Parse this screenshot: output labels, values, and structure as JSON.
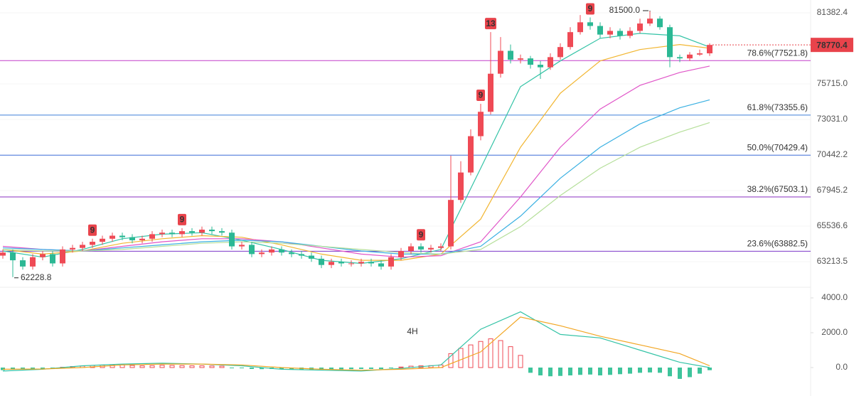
{
  "chart_data": [
    {
      "type": "candlestick",
      "log_scale": true,
      "grid": true,
      "ylim": [
        61770,
        82445
      ],
      "yticks": [
        {
          "value": 81382.4,
          "label": "81382.4"
        },
        {
          "value": 75715,
          "label": "75715.0"
        },
        {
          "value": 73031,
          "label": "73031.0"
        },
        {
          "value": 70442.2,
          "label": "70442.2"
        },
        {
          "value": 67945.2,
          "label": "67945.2"
        },
        {
          "value": 65536.6,
          "label": "65536.6"
        },
        {
          "value": 63213.5,
          "label": "63213.5"
        }
      ],
      "up_color": "#ef4a55",
      "down_color": "#2bb894",
      "open": [
        63600,
        63800,
        63300,
        62900,
        63500,
        63700,
        63100,
        64000,
        64100,
        64300,
        64500,
        64700,
        64900,
        64800,
        64600,
        64700,
        65000,
        65100,
        65000,
        65200,
        65100,
        65300,
        65200,
        65100,
        64200,
        64300,
        63700,
        63800,
        64000,
        63800,
        63700,
        63600,
        63400,
        63000,
        63200,
        63100,
        63100,
        63200,
        63100,
        62900,
        63500,
        63900,
        64200,
        64000,
        64100,
        64200,
        67300,
        69200,
        71800,
        73600,
        76500,
        78300,
        77600,
        77700,
        77200,
        77000,
        77800,
        78600,
        79800,
        80600,
        80300,
        79600,
        79900,
        79500,
        79900,
        80500,
        80900,
        80200,
        77800,
        77700,
        78000,
        78100
      ],
      "high": [
        64000,
        64000,
        63500,
        63700,
        63900,
        63900,
        64200,
        64300,
        64500,
        64700,
        64900,
        65100,
        65100,
        65000,
        64900,
        65200,
        65300,
        65300,
        65400,
        65400,
        65500,
        65500,
        65400,
        65300,
        64500,
        64500,
        64000,
        64200,
        64200,
        64000,
        63900,
        63800,
        63600,
        63400,
        63400,
        63300,
        63400,
        63400,
        63300,
        63700,
        64100,
        64400,
        64400,
        64300,
        64400,
        70400,
        70000,
        72300,
        74200,
        79800,
        79400,
        78800,
        78000,
        77900,
        77500,
        78100,
        78900,
        80200,
        81200,
        81000,
        80600,
        80200,
        80100,
        80200,
        80900,
        81500,
        81100,
        80400,
        78000,
        78200,
        78400,
        78900
      ],
      "low": [
        63400,
        62228.8,
        62700,
        62700,
        63300,
        62900,
        62900,
        63800,
        63900,
        64100,
        64300,
        64500,
        64600,
        64400,
        64400,
        64500,
        64800,
        64800,
        64800,
        64900,
        64900,
        65000,
        64900,
        64000,
        64000,
        63500,
        63500,
        63600,
        63600,
        63500,
        63400,
        63200,
        62800,
        62800,
        62900,
        62900,
        62900,
        62900,
        62700,
        62700,
        63300,
        63700,
        63800,
        63800,
        63900,
        64000,
        67100,
        69000,
        71500,
        73400,
        76200,
        77300,
        77300,
        76900,
        76100,
        76800,
        77600,
        78400,
        79600,
        80000,
        79300,
        79300,
        79200,
        79300,
        79700,
        80300,
        80000,
        77000,
        77400,
        77500,
        77900,
        77900
      ],
      "close": [
        63800,
        63300,
        62900,
        63500,
        63700,
        63100,
        64000,
        64100,
        64300,
        64500,
        64700,
        64900,
        64800,
        64600,
        64700,
        65000,
        65100,
        65000,
        65200,
        65100,
        65300,
        65200,
        65100,
        64200,
        64300,
        63700,
        63800,
        64000,
        63800,
        63700,
        63600,
        63400,
        63000,
        63200,
        63100,
        63100,
        63200,
        63100,
        62900,
        63500,
        63900,
        64200,
        64000,
        64100,
        64200,
        67300,
        69200,
        71800,
        73600,
        76500,
        78300,
        77600,
        77700,
        77200,
        77000,
        77800,
        78600,
        79800,
        80600,
        80300,
        79600,
        79900,
        79500,
        79900,
        80500,
        80900,
        80200,
        77800,
        77700,
        78000,
        78100,
        78770.4
      ],
      "series": [
        {
          "color": "#33c3a6",
          "x": [
            0,
            4,
            8,
            12,
            16,
            20,
            24,
            28,
            32,
            36,
            40,
            44,
            48,
            52,
            56,
            60,
            64,
            68,
            71
          ],
          "values": [
            63900,
            63500,
            64000,
            64700,
            65000,
            65100,
            64600,
            64000,
            63300,
            63100,
            63400,
            64000,
            69500,
            75500,
            77500,
            79300,
            79700,
            79500,
            78600
          ]
        },
        {
          "color": "#f2b632",
          "x": [
            0,
            4,
            8,
            12,
            16,
            20,
            24,
            28,
            32,
            36,
            40,
            44,
            48,
            52,
            56,
            60,
            64,
            68,
            71
          ],
          "values": [
            64000,
            63700,
            63900,
            64400,
            64700,
            64900,
            64800,
            64300,
            63700,
            63300,
            63300,
            63700,
            66000,
            71000,
            75000,
            77500,
            78400,
            78800,
            78500
          ]
        },
        {
          "color": "#e055c8",
          "x": [
            0,
            4,
            8,
            12,
            16,
            20,
            24,
            28,
            32,
            36,
            40,
            44,
            48,
            52,
            56,
            60,
            64,
            68,
            71
          ],
          "values": [
            64200,
            64000,
            63900,
            64200,
            64500,
            64700,
            64700,
            64500,
            64100,
            63700,
            63500,
            63600,
            64500,
            67500,
            71000,
            73800,
            75600,
            76600,
            77100
          ]
        },
        {
          "color": "#3ab0e2",
          "x": [
            0,
            4,
            8,
            12,
            16,
            20,
            24,
            28,
            32,
            36,
            40,
            44,
            48,
            52,
            56,
            60,
            64,
            68,
            71
          ],
          "values": [
            64100,
            64000,
            63900,
            64100,
            64300,
            64500,
            64600,
            64500,
            64200,
            63900,
            63700,
            63700,
            64200,
            66200,
            68800,
            71000,
            72700,
            73900,
            74500
          ]
        },
        {
          "color": "#b5df9a",
          "x": [
            0,
            4,
            8,
            12,
            16,
            20,
            24,
            28,
            32,
            36,
            40,
            44,
            48,
            52,
            56,
            60,
            64,
            68,
            71
          ],
          "values": [
            64000,
            63900,
            63900,
            64000,
            64200,
            64400,
            64500,
            64400,
            64200,
            64000,
            63800,
            63700,
            64000,
            65500,
            67600,
            69500,
            71000,
            72100,
            72800
          ]
        }
      ],
      "fib_levels": [
        {
          "value": 77521.8,
          "label": "78.6%(77521.8)",
          "color": "#c43fc9"
        },
        {
          "value": 73355.6,
          "label": "61.8%(73355.6)",
          "color": "#3f7fd9"
        },
        {
          "value": 70429.4,
          "label": "50.0%(70429.4)",
          "color": "#3f6fd9"
        },
        {
          "value": 67503.1,
          "label": "38.2%(67503.1)",
          "color": "#8a2fc0"
        },
        {
          "value": 63882.5,
          "label": "23.6%(63882.5)",
          "color": "#7b35c8"
        }
      ],
      "high_label": "81500.0",
      "low_label": "62228.8",
      "markers": [
        {
          "x": 9,
          "text": "9"
        },
        {
          "x": 18,
          "text": "9"
        },
        {
          "x": 42,
          "text": "9"
        },
        {
          "x": 48,
          "text": "9"
        },
        {
          "x": 49,
          "text": "13"
        },
        {
          "x": 59,
          "text": "9"
        }
      ]
    },
    {
      "type": "bar",
      "label": "4H",
      "label_color": "#e8434b",
      "ylim": [
        -1633,
        4449
      ],
      "yticks": [
        {
          "value": 4000,
          "label": "4000.0"
        },
        {
          "value": 2000,
          "label": "2000.0"
        },
        {
          "value": 0,
          "label": "0.0"
        }
      ],
      "up_color": "#ef4a55",
      "down_color": "#3ec49b",
      "values": [
        -150,
        -120,
        -80,
        -100,
        -60,
        -30,
        20,
        60,
        90,
        120,
        140,
        160,
        150,
        120,
        100,
        110,
        130,
        120,
        110,
        100,
        100,
        90,
        80,
        -20,
        -40,
        -80,
        -90,
        -80,
        -90,
        -100,
        -110,
        -120,
        -130,
        -110,
        -100,
        -90,
        -80,
        -80,
        -90,
        -30,
        30,
        80,
        100,
        110,
        150,
        800,
        1100,
        1300,
        1500,
        1650,
        1550,
        1200,
        700,
        -300,
        -450,
        -500,
        -480,
        -450,
        -420,
        -400,
        -450,
        -420,
        -380,
        -350,
        -300,
        -280,
        -300,
        -500,
        -650,
        -550,
        -350,
        -150
      ],
      "lines": [
        {
          "color": "#33c3a6",
          "x": [
            0,
            4,
            8,
            12,
            16,
            20,
            24,
            28,
            32,
            36,
            40,
            44,
            48,
            52,
            56,
            60,
            64,
            68,
            71
          ],
          "values": [
            -200,
            -100,
            100,
            200,
            250,
            200,
            100,
            -100,
            -150,
            -200,
            -50,
            150,
            2200,
            3200,
            1900,
            1700,
            1000,
            300,
            0
          ]
        },
        {
          "color": "#f2a623",
          "x": [
            0,
            4,
            8,
            12,
            16,
            20,
            24,
            28,
            32,
            36,
            40,
            44,
            48,
            52,
            56,
            60,
            64,
            68,
            71
          ],
          "values": [
            -100,
            -80,
            0,
            150,
            200,
            200,
            150,
            0,
            -100,
            -150,
            -100,
            0,
            900,
            2900,
            2400,
            1800,
            1300,
            800,
            100
          ]
        }
      ]
    }
  ]
}
